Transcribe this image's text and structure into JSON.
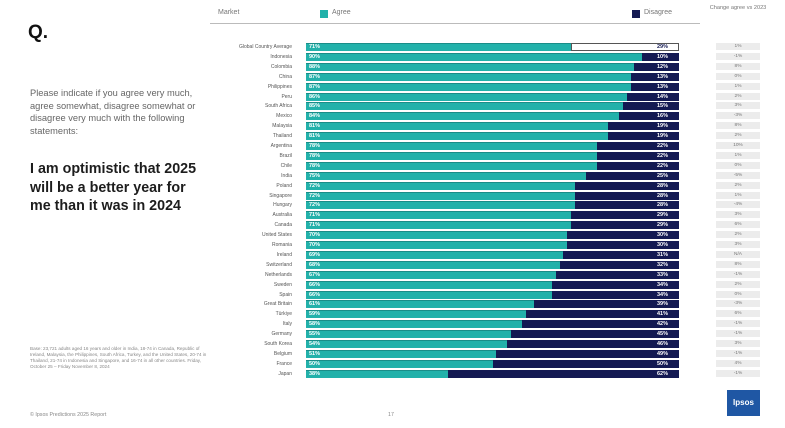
{
  "question_label": "Q.",
  "prompt": "Please indicate if you agree very much, agree somewhat, disagree somewhat or disagree very much with the following statements:",
  "statement": "I am optimistic that 2025 will be a better year for me than it was in 2024",
  "base_note": "Base: 23,721 adults aged 16 years and older in India, 18-74 in Canada, Republic of Ireland, Malaysia, the Philippines, South Africa, Turkey, and the United States, 20-74 in Thailand, 21-74 in Indonesia and Singapore, and 16-74 in all other countries. Friday, October 25 – Friday November 8, 2024",
  "footer": "© Ipsos Predictions 2025 Report",
  "page_number": "17",
  "logo_text": "Ipsos",
  "colors": {
    "agree": "#22b1aa",
    "disagree": "#141a53"
  },
  "chart_data": {
    "type": "bar",
    "orientation": "horizontal-stacked-100",
    "headers": {
      "market": "Market",
      "agree": "Agree",
      "disagree": "Disagree",
      "change": "Change agree vs 2023"
    },
    "categories": [
      "Global Country Average",
      "Indonesia",
      "Colombia",
      "China",
      "Philippines",
      "Peru",
      "South Africa",
      "Mexico",
      "Malaysia",
      "Thailand",
      "Argentina",
      "Brazil",
      "Chile",
      "India",
      "Poland",
      "Singapore",
      "Hungary",
      "Australia",
      "Canada",
      "United States",
      "Romania",
      "Ireland",
      "Switzerland",
      "Netherlands",
      "Sweden",
      "Spain",
      "Great Britain",
      "Türkiye",
      "Italy",
      "Germany",
      "South Korea",
      "Belgium",
      "France",
      "Japan"
    ],
    "series": [
      {
        "name": "Agree",
        "values": [
          71,
          90,
          88,
          87,
          87,
          86,
          85,
          84,
          81,
          81,
          78,
          78,
          78,
          75,
          72,
          72,
          72,
          71,
          71,
          70,
          70,
          69,
          68,
          67,
          66,
          66,
          61,
          59,
          58,
          55,
          54,
          51,
          50,
          38
        ]
      },
      {
        "name": "Disagree",
        "values": [
          29,
          10,
          12,
          13,
          13,
          14,
          15,
          16,
          19,
          19,
          22,
          22,
          22,
          25,
          28,
          28,
          28,
          29,
          29,
          30,
          30,
          31,
          32,
          33,
          34,
          34,
          39,
          41,
          42,
          45,
          46,
          49,
          50,
          62
        ]
      }
    ],
    "change_vs_2023": [
      "1%",
      "-1%",
      "8%",
      "0%",
      "1%",
      "2%",
      "3%",
      "-3%",
      "8%",
      "2%",
      "10%",
      "1%",
      "0%",
      "-5%",
      "2%",
      "1%",
      "-4%",
      "3%",
      "6%",
      "2%",
      "3%",
      "N/A",
      "8%",
      "-1%",
      "2%",
      "0%",
      "-3%",
      "6%",
      "-1%",
      "-1%",
      "3%",
      "-1%",
      "4%",
      "-1%"
    ],
    "ylim": [
      0,
      100
    ]
  }
}
